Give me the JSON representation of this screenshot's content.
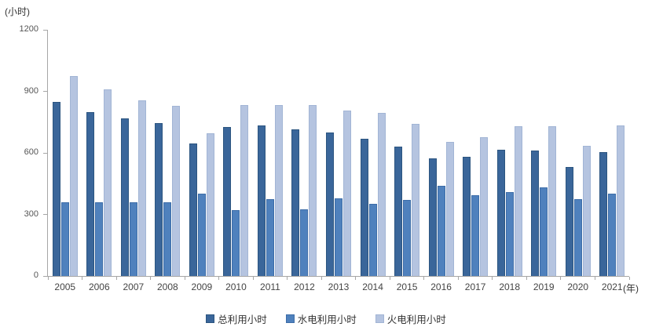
{
  "figure": {
    "y_unit_label": "(小时)",
    "x_unit_label": "(年)"
  },
  "chart_data": {
    "type": "bar",
    "title": "",
    "ylabel": "(小时)",
    "xlabel": "(年)",
    "categories": [
      "2005",
      "2006",
      "2007",
      "2008",
      "2009",
      "2010",
      "2011",
      "2012",
      "2013",
      "2014",
      "2015",
      "2016",
      "2017",
      "2018",
      "2019",
      "2020",
      "2021"
    ],
    "series": [
      {
        "name": "总利用小时",
        "color": "#3a669a",
        "border_color": "#2c5580",
        "values": [
          850,
          800,
          770,
          745,
          645,
          725,
          735,
          715,
          700,
          670,
          630,
          575,
          580,
          615,
          610,
          530,
          605
        ]
      },
      {
        "name": "水电利用小时",
        "color": "#4f81bd",
        "border_color": "#3d6da8",
        "values": [
          360,
          360,
          360,
          360,
          400,
          320,
          375,
          325,
          380,
          350,
          370,
          440,
          395,
          410,
          430,
          375,
          400
        ]
      },
      {
        "name": "火电利用小时",
        "color": "#b5c4e0",
        "border_color": "#a2b5d5",
        "values": [
          975,
          910,
          855,
          830,
          695,
          835,
          835,
          835,
          805,
          795,
          740,
          655,
          675,
          730,
          730,
          635,
          735
        ]
      }
    ],
    "ylim": [
      0,
      1200
    ],
    "yticks": [
      0,
      300,
      600,
      900,
      1200
    ],
    "grid": false,
    "legend_position": "bottom",
    "axis_color": "#a6a6a6"
  }
}
